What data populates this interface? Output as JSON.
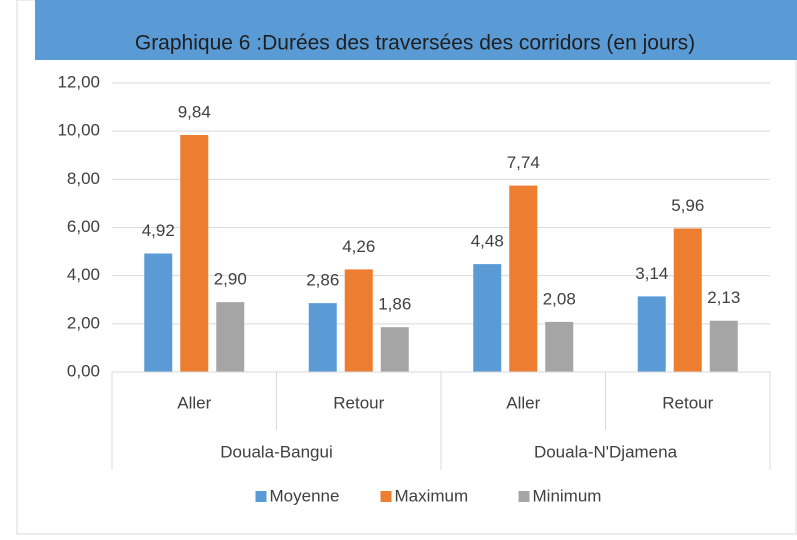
{
  "chart_data": {
    "type": "bar",
    "title": "Graphique 6 :Durées des traversées des corridors (en jours)",
    "categories": [
      "Aller",
      "Retour",
      "Aller",
      "Retour"
    ],
    "category_groups": [
      {
        "name": "Douala-Bangui",
        "span": 2
      },
      {
        "name": "Douala-N'Djamena",
        "span": 2
      }
    ],
    "series": [
      {
        "name": "Moyenne",
        "color": "#5b9bd5",
        "values": [
          4.92,
          2.86,
          4.48,
          3.14
        ],
        "value_labels": [
          "4,92",
          "2,86",
          "4,48",
          "3,14"
        ]
      },
      {
        "name": "Maximum",
        "color": "#ed7d31",
        "values": [
          9.84,
          4.26,
          7.74,
          5.96
        ],
        "value_labels": [
          "9,84",
          "4,26",
          "7,74",
          "5,96"
        ]
      },
      {
        "name": "Minimum",
        "color": "#a5a5a5",
        "values": [
          2.9,
          1.86,
          2.08,
          2.13
        ],
        "value_labels": [
          "2,90",
          "1,86",
          "2,08",
          "2,13"
        ]
      }
    ],
    "ylim": [
      0,
      12
    ],
    "yticks": [
      {
        "value": 0,
        "label": "0,00"
      },
      {
        "value": 2,
        "label": "2,00"
      },
      {
        "value": 4,
        "label": "4,00"
      },
      {
        "value": 6,
        "label": "6,00"
      },
      {
        "value": 8,
        "label": "8,00"
      },
      {
        "value": 10,
        "label": "10,00"
      },
      {
        "value": 12,
        "label": "12,00"
      }
    ],
    "grid": true,
    "legend": "bottom"
  }
}
